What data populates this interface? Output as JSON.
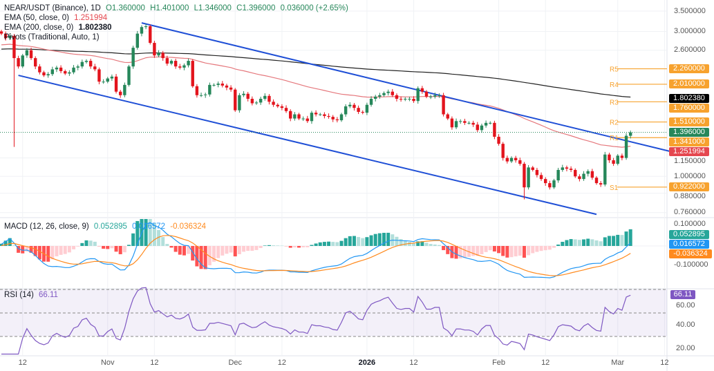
{
  "header": {
    "symbol": "NEAR/USDT (Binance), 1D",
    "open": "O1.360000",
    "high": "H1.401000",
    "low": "L1.346000",
    "close": "C1.396000",
    "change": "0.036000 (+2.65%)"
  },
  "indicators": {
    "ema50": {
      "label": "EMA (50, close, 0)",
      "value": "1.251994",
      "color": "#e5474f"
    },
    "ema200": {
      "label": "EMA (200, close, 0)",
      "value": "1.802380",
      "color": "#131722"
    },
    "pivots": {
      "label": "Pivots (Traditional, Auto, 1)"
    }
  },
  "price_axis": [
    "3.500000",
    "3.000000",
    "2.600000",
    "1.150000",
    "1.000000",
    "0.880000",
    "0.760000"
  ],
  "price_axis_values": [
    3.5,
    3.0,
    2.6,
    1.15,
    1.0,
    0.88,
    0.76
  ],
  "pivots": [
    {
      "name": "R5",
      "value": 2.26,
      "label": "2.260000"
    },
    {
      "name": "R4",
      "value": 2.01,
      "label": "2.010000"
    },
    {
      "name": "R3",
      "value": 1.76,
      "label": "1.760000"
    },
    {
      "name": "R2",
      "value": 1.51,
      "label": "1.510000"
    },
    {
      "name": "R1",
      "value": 1.341,
      "label": "1.341000"
    },
    {
      "name": "S1",
      "value": 0.922,
      "label": "0.922000"
    }
  ],
  "tags": {
    "ema200": {
      "value": 1.80238,
      "label": "1.802380"
    },
    "last": {
      "value": 1.396,
      "label": "1.396000"
    },
    "ema50": {
      "value": 1.251994,
      "label": "1.251994"
    }
  },
  "macd": {
    "label": "MACD (12, 26, close, 9)",
    "hist": "0.052895",
    "macd": "0.016572",
    "signal": "-0.036324",
    "axis": [
      "0.100000",
      "-0.100000"
    ]
  },
  "rsi": {
    "label": "RSI (14)",
    "value": "66.11",
    "axis": [
      "60.00",
      "40.00",
      "20.00"
    ]
  },
  "time_axis": [
    {
      "label": "12",
      "day": 5
    },
    {
      "label": "Nov",
      "day": 25
    },
    {
      "label": "12",
      "day": 36
    },
    {
      "label": "Dec",
      "day": 55
    },
    {
      "label": "12",
      "day": 66
    },
    {
      "label": "2026",
      "day": 86
    },
    {
      "label": "12",
      "day": 97
    },
    {
      "label": "Feb",
      "day": 117
    },
    {
      "label": "12",
      "day": 128
    },
    {
      "label": "Mar",
      "day": 145
    },
    {
      "label": "12",
      "day": 156
    }
  ],
  "colors": {
    "up": "#26875a",
    "down": "#e3141d",
    "channel": "#1f4fd6",
    "pivot": "#f7a22e",
    "macd": "#2196f3",
    "signal": "#ff8a1e",
    "rsi": "#7e57c2"
  },
  "chart_data": {
    "type": "candlestick",
    "first_open": 3.0,
    "closes": [
      2.95,
      2.85,
      2.9,
      2.45,
      2.3,
      2.5,
      2.6,
      2.45,
      2.3,
      2.2,
      2.15,
      2.17,
      2.25,
      2.28,
      2.22,
      2.18,
      2.2,
      2.28,
      2.3,
      2.38,
      2.4,
      2.3,
      2.25,
      2.05,
      2.05,
      2.1,
      2.13,
      1.9,
      1.85,
      2.0,
      2.3,
      2.65,
      2.95,
      3.1,
      3.12,
      2.75,
      2.5,
      2.55,
      2.45,
      2.35,
      2.4,
      2.3,
      2.28,
      2.32,
      2.4,
      1.98,
      1.85,
      1.85,
      1.86,
      2.0,
      2.0,
      2.02,
      1.99,
      1.96,
      1.93,
      1.65,
      1.85,
      1.87,
      1.8,
      1.74,
      1.75,
      1.8,
      1.84,
      1.76,
      1.72,
      1.7,
      1.68,
      1.64,
      1.55,
      1.6,
      1.55,
      1.55,
      1.52,
      1.62,
      1.6,
      1.6,
      1.58,
      1.57,
      1.54,
      1.53,
      1.6,
      1.7,
      1.72,
      1.68,
      1.63,
      1.62,
      1.72,
      1.8,
      1.83,
      1.85,
      1.88,
      1.9,
      1.85,
      1.8,
      1.79,
      1.8,
      1.8,
      1.77,
      1.95,
      1.9,
      1.83,
      1.83,
      1.85,
      1.85,
      1.6,
      1.55,
      1.45,
      1.52,
      1.52,
      1.5,
      1.5,
      1.48,
      1.42,
      1.47,
      1.5,
      1.5,
      1.35,
      1.28,
      1.15,
      1.12,
      1.15,
      1.13,
      1.1,
      0.92,
      1.07,
      1.05,
      1.01,
      0.98,
      0.95,
      0.92,
      0.97,
      1.05,
      1.07,
      1.06,
      1.05,
      1.0,
      0.98,
      1.02,
      1.04,
      0.99,
      0.95,
      0.94,
      1.18,
      1.13,
      1.1,
      1.17,
      1.15,
      1.36,
      1.396
    ],
    "special_lows": [
      {
        "day": 3,
        "low": 1.25
      },
      {
        "day": 123,
        "low": 0.84
      }
    ],
    "channel_upper": [
      {
        "day": 33,
        "price": 3.2
      },
      {
        "day": 148,
        "price": 1.3
      }
    ],
    "channel_lower": [
      {
        "day": 4,
        "price": 2.15
      },
      {
        "day": 140,
        "price": 0.75
      }
    ],
    "rsi_levels": [
      70,
      50,
      30
    ]
  }
}
